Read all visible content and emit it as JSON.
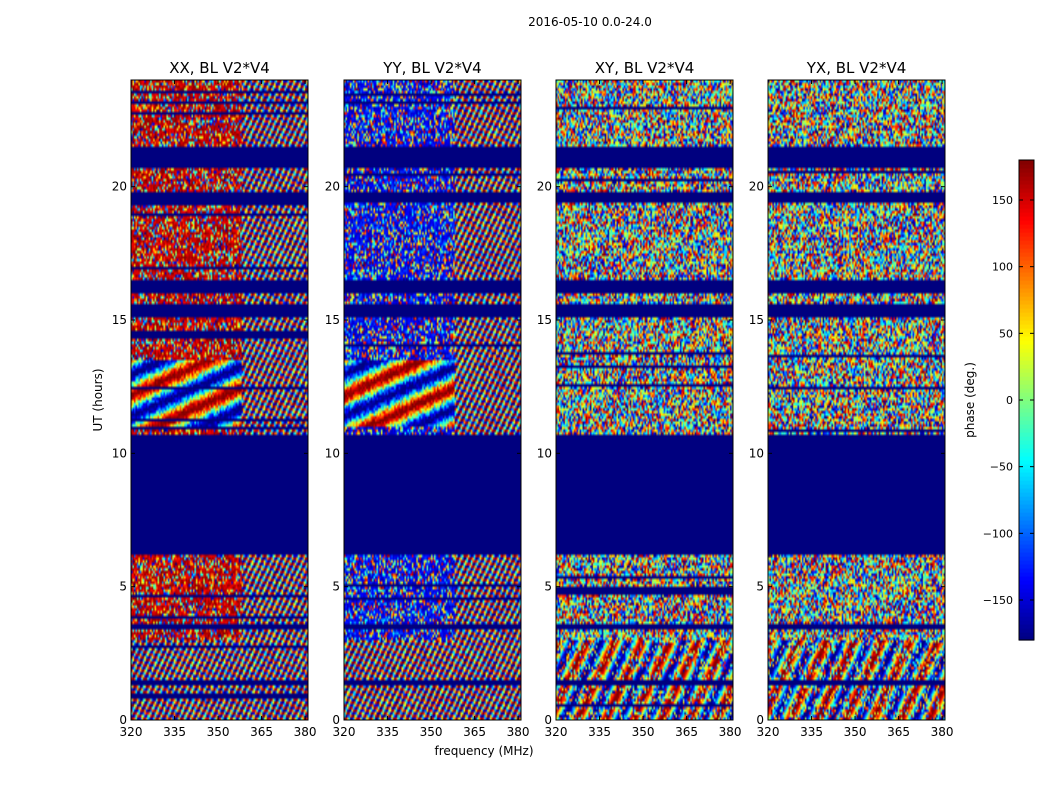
{
  "figure_title": "2016-05-10 0.0-24.0",
  "chart_data": {
    "type": "heatmap",
    "suptitle": "2016-05-10 0.0-24.0",
    "xlabel": "frequency (MHz)",
    "ylabel": "UT (hours)",
    "xlim": [
      320,
      381
    ],
    "ylim": [
      0,
      24
    ],
    "xticks": [
      320,
      335,
      350,
      365,
      380
    ],
    "yticks": [
      0,
      5,
      10,
      15,
      20
    ],
    "colormap": "jet",
    "panels": [
      {
        "title": "XX, BL V2*V4",
        "polarization": "XX",
        "baseline": "V2*V4",
        "pattern": "xx"
      },
      {
        "title": "YY, BL V2*V4",
        "polarization": "YY",
        "baseline": "V2*V4",
        "pattern": "yy"
      },
      {
        "title": "XY, BL V2*V4",
        "polarization": "XY",
        "baseline": "V2*V4",
        "pattern": "cross"
      },
      {
        "title": "YX, BL V2*V4",
        "polarization": "YX",
        "baseline": "V2*V4",
        "pattern": "cross"
      }
    ],
    "colorbar": {
      "label": "phase (deg.)",
      "range": [
        -180,
        180
      ],
      "ticks": [
        150,
        100,
        50,
        0,
        -50,
        -100,
        -150
      ],
      "tick_labels": [
        "150",
        "100",
        "50",
        "0",
        "−50",
        "−100",
        "−150"
      ]
    },
    "masked_ut_bands": [
      [
        20.7,
        21.5
      ],
      [
        19.4,
        19.8
      ],
      [
        16.0,
        16.5
      ],
      [
        15.1,
        15.6
      ],
      [
        6.2,
        6.8
      ],
      [
        3.45,
        3.6
      ],
      [
        1.3,
        1.45
      ],
      [
        10.3,
        10.7
      ],
      [
        9.45,
        10.3
      ],
      [
        8.9,
        9.45
      ],
      [
        8.2,
        8.9
      ],
      [
        7.6,
        8.2
      ],
      [
        7.1,
        7.6
      ],
      [
        6.8,
        7.1
      ]
    ],
    "masked_color": "#00007f"
  }
}
